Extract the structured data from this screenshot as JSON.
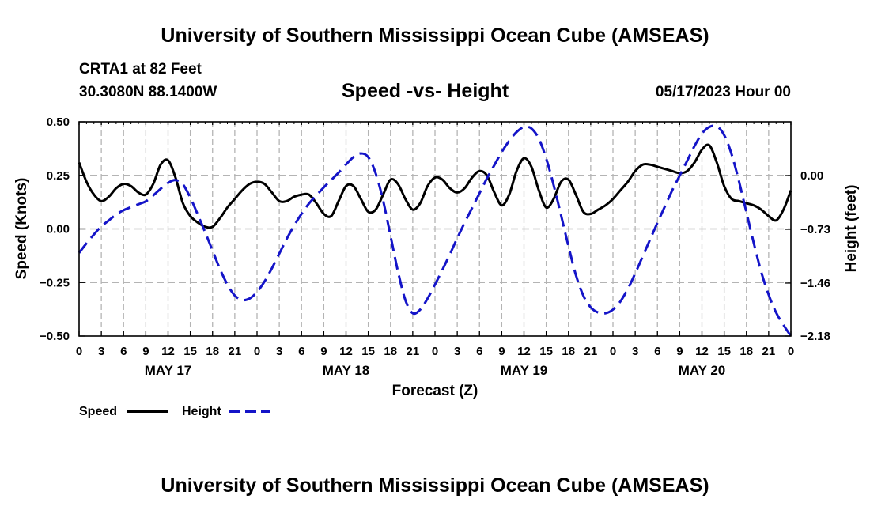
{
  "header": {
    "title": "University of Southern Mississippi Ocean Cube (AMSEAS)",
    "station": "CRTA1 at 82 Feet",
    "coords": "30.3080N  88.1400W",
    "plot_title": "Speed -vs- Height",
    "forecast_time": "05/17/2023 Hour 00"
  },
  "footer": {
    "title": "University of Southern Mississippi Ocean Cube (AMSEAS)"
  },
  "chart_data": {
    "type": "line",
    "title": "Speed -vs- Height",
    "xlabel": "Forecast (Z)",
    "ylabel": "Speed (Knots)",
    "y2label": "Height (feet)",
    "grid": true,
    "xlim": [
      0,
      96
    ],
    "ylim": [
      -0.5,
      0.5
    ],
    "y2lim": [
      -2.18,
      0.73
    ],
    "x_tick_labels": [
      "0",
      "3",
      "6",
      "9",
      "12",
      "15",
      "18",
      "21",
      "0",
      "3",
      "6",
      "9",
      "12",
      "15",
      "18",
      "21",
      "0",
      "3",
      "6",
      "9",
      "12",
      "15",
      "18",
      "21",
      "0",
      "3",
      "6",
      "9",
      "12",
      "15",
      "18",
      "21",
      "0"
    ],
    "date_labels": [
      {
        "label": "MAY 17",
        "x": 12
      },
      {
        "label": "MAY 18",
        "x": 36
      },
      {
        "label": "MAY 19",
        "x": 60
      },
      {
        "label": "MAY 20",
        "x": 84
      }
    ],
    "y_tick_labels": [
      "0.50",
      "0.25",
      "0.00",
      "−0.25",
      "−0.50"
    ],
    "y_ticks": [
      0.5,
      0.25,
      0,
      -0.25,
      -0.5
    ],
    "y2_tick_labels": [
      "0.00",
      "−0.73",
      "−1.46",
      "−2.18"
    ],
    "y2_ticks": [
      0,
      -0.73,
      -1.46,
      -2.18
    ],
    "legend": {
      "position": "bottom-left",
      "speed_label": "Speed",
      "height_label": "Height"
    },
    "series": [
      {
        "name": "Speed",
        "axis": "left",
        "color": "#000000",
        "style": "solid",
        "points": [
          [
            0,
            0.31
          ],
          [
            1,
            0.22
          ],
          [
            2,
            0.16
          ],
          [
            3,
            0.13
          ],
          [
            4,
            0.15
          ],
          [
            5,
            0.19
          ],
          [
            6,
            0.21
          ],
          [
            7,
            0.2
          ],
          [
            8,
            0.17
          ],
          [
            9,
            0.16
          ],
          [
            10,
            0.21
          ],
          [
            11,
            0.3
          ],
          [
            12,
            0.32
          ],
          [
            13,
            0.24
          ],
          [
            14,
            0.12
          ],
          [
            15,
            0.06
          ],
          [
            16,
            0.03
          ],
          [
            17,
            0.01
          ],
          [
            18,
            0.01
          ],
          [
            19,
            0.05
          ],
          [
            20,
            0.1
          ],
          [
            21,
            0.14
          ],
          [
            22,
            0.18
          ],
          [
            23,
            0.21
          ],
          [
            24,
            0.22
          ],
          [
            25,
            0.21
          ],
          [
            26,
            0.17
          ],
          [
            27,
            0.13
          ],
          [
            28,
            0.13
          ],
          [
            29,
            0.15
          ],
          [
            30,
            0.16
          ],
          [
            31,
            0.16
          ],
          [
            32,
            0.12
          ],
          [
            33,
            0.07
          ],
          [
            34,
            0.06
          ],
          [
            35,
            0.13
          ],
          [
            36,
            0.2
          ],
          [
            37,
            0.2
          ],
          [
            38,
            0.14
          ],
          [
            39,
            0.08
          ],
          [
            40,
            0.09
          ],
          [
            41,
            0.16
          ],
          [
            42,
            0.23
          ],
          [
            43,
            0.21
          ],
          [
            44,
            0.14
          ],
          [
            45,
            0.09
          ],
          [
            46,
            0.12
          ],
          [
            47,
            0.2
          ],
          [
            48,
            0.24
          ],
          [
            49,
            0.23
          ],
          [
            50,
            0.19
          ],
          [
            51,
            0.17
          ],
          [
            52,
            0.19
          ],
          [
            53,
            0.24
          ],
          [
            54,
            0.27
          ],
          [
            55,
            0.25
          ],
          [
            56,
            0.17
          ],
          [
            57,
            0.11
          ],
          [
            58,
            0.16
          ],
          [
            59,
            0.27
          ],
          [
            60,
            0.33
          ],
          [
            61,
            0.29
          ],
          [
            62,
            0.18
          ],
          [
            63,
            0.1
          ],
          [
            64,
            0.14
          ],
          [
            65,
            0.22
          ],
          [
            66,
            0.23
          ],
          [
            67,
            0.16
          ],
          [
            68,
            0.08
          ],
          [
            69,
            0.07
          ],
          [
            70,
            0.09
          ],
          [
            71,
            0.11
          ],
          [
            72,
            0.14
          ],
          [
            73,
            0.18
          ],
          [
            74,
            0.22
          ],
          [
            75,
            0.27
          ],
          [
            76,
            0.3
          ],
          [
            77,
            0.3
          ],
          [
            78,
            0.29
          ],
          [
            79,
            0.28
          ],
          [
            80,
            0.27
          ],
          [
            81,
            0.26
          ],
          [
            82,
            0.27
          ],
          [
            83,
            0.31
          ],
          [
            84,
            0.37
          ],
          [
            85,
            0.39
          ],
          [
            86,
            0.31
          ],
          [
            87,
            0.2
          ],
          [
            88,
            0.14
          ],
          [
            89,
            0.13
          ],
          [
            90,
            0.12
          ],
          [
            91,
            0.11
          ],
          [
            92,
            0.09
          ],
          [
            93,
            0.06
          ],
          [
            94,
            0.04
          ],
          [
            95,
            0.09
          ],
          [
            96,
            0.18
          ]
        ]
      },
      {
        "name": "Height",
        "axis": "right",
        "color": "#1414c8",
        "style": "dashed",
        "points": [
          [
            0,
            -1.05
          ],
          [
            1,
            -0.92
          ],
          [
            2,
            -0.8
          ],
          [
            3,
            -0.69
          ],
          [
            4,
            -0.61
          ],
          [
            5,
            -0.53
          ],
          [
            6,
            -0.47
          ],
          [
            7,
            -0.43
          ],
          [
            8,
            -0.39
          ],
          [
            9,
            -0.35
          ],
          [
            10,
            -0.27
          ],
          [
            11,
            -0.18
          ],
          [
            12,
            -0.1
          ],
          [
            13,
            -0.06
          ],
          [
            14,
            -0.12
          ],
          [
            15,
            -0.3
          ],
          [
            16,
            -0.53
          ],
          [
            17,
            -0.77
          ],
          [
            18,
            -1.02
          ],
          [
            19,
            -1.27
          ],
          [
            20,
            -1.48
          ],
          [
            21,
            -1.63
          ],
          [
            22,
            -1.69
          ],
          [
            23,
            -1.67
          ],
          [
            24,
            -1.58
          ],
          [
            25,
            -1.44
          ],
          [
            26,
            -1.26
          ],
          [
            27,
            -1.06
          ],
          [
            28,
            -0.86
          ],
          [
            29,
            -0.68
          ],
          [
            30,
            -0.52
          ],
          [
            31,
            -0.38
          ],
          [
            32,
            -0.27
          ],
          [
            33,
            -0.16
          ],
          [
            34,
            -0.06
          ],
          [
            35,
            0.04
          ],
          [
            36,
            0.15
          ],
          [
            37,
            0.25
          ],
          [
            38,
            0.3
          ],
          [
            39,
            0.25
          ],
          [
            40,
            0.03
          ],
          [
            41,
            -0.34
          ],
          [
            42,
            -0.82
          ],
          [
            43,
            -1.3
          ],
          [
            44,
            -1.69
          ],
          [
            45,
            -1.87
          ],
          [
            46,
            -1.82
          ],
          [
            47,
            -1.67
          ],
          [
            48,
            -1.48
          ],
          [
            49,
            -1.28
          ],
          [
            50,
            -1.07
          ],
          [
            51,
            -0.85
          ],
          [
            52,
            -0.64
          ],
          [
            53,
            -0.44
          ],
          [
            54,
            -0.24
          ],
          [
            55,
            -0.04
          ],
          [
            56,
            0.14
          ],
          [
            57,
            0.32
          ],
          [
            58,
            0.47
          ],
          [
            59,
            0.59
          ],
          [
            60,
            0.66
          ],
          [
            61,
            0.64
          ],
          [
            62,
            0.5
          ],
          [
            63,
            0.23
          ],
          [
            64,
            -0.13
          ],
          [
            65,
            -0.54
          ],
          [
            66,
            -0.96
          ],
          [
            67,
            -1.35
          ],
          [
            68,
            -1.63
          ],
          [
            69,
            -1.79
          ],
          [
            70,
            -1.86
          ],
          [
            71,
            -1.87
          ],
          [
            72,
            -1.82
          ],
          [
            73,
            -1.71
          ],
          [
            74,
            -1.54
          ],
          [
            75,
            -1.33
          ],
          [
            76,
            -1.1
          ],
          [
            77,
            -0.87
          ],
          [
            78,
            -0.64
          ],
          [
            79,
            -0.42
          ],
          [
            80,
            -0.2
          ],
          [
            81,
            0.0
          ],
          [
            82,
            0.2
          ],
          [
            83,
            0.4
          ],
          [
            84,
            0.57
          ],
          [
            85,
            0.66
          ],
          [
            86,
            0.67
          ],
          [
            87,
            0.55
          ],
          [
            88,
            0.29
          ],
          [
            89,
            -0.08
          ],
          [
            90,
            -0.5
          ],
          [
            91,
            -0.92
          ],
          [
            92,
            -1.31
          ],
          [
            93,
            -1.62
          ],
          [
            94,
            -1.86
          ],
          [
            95,
            -2.03
          ],
          [
            96,
            -2.18
          ]
        ]
      }
    ]
  }
}
